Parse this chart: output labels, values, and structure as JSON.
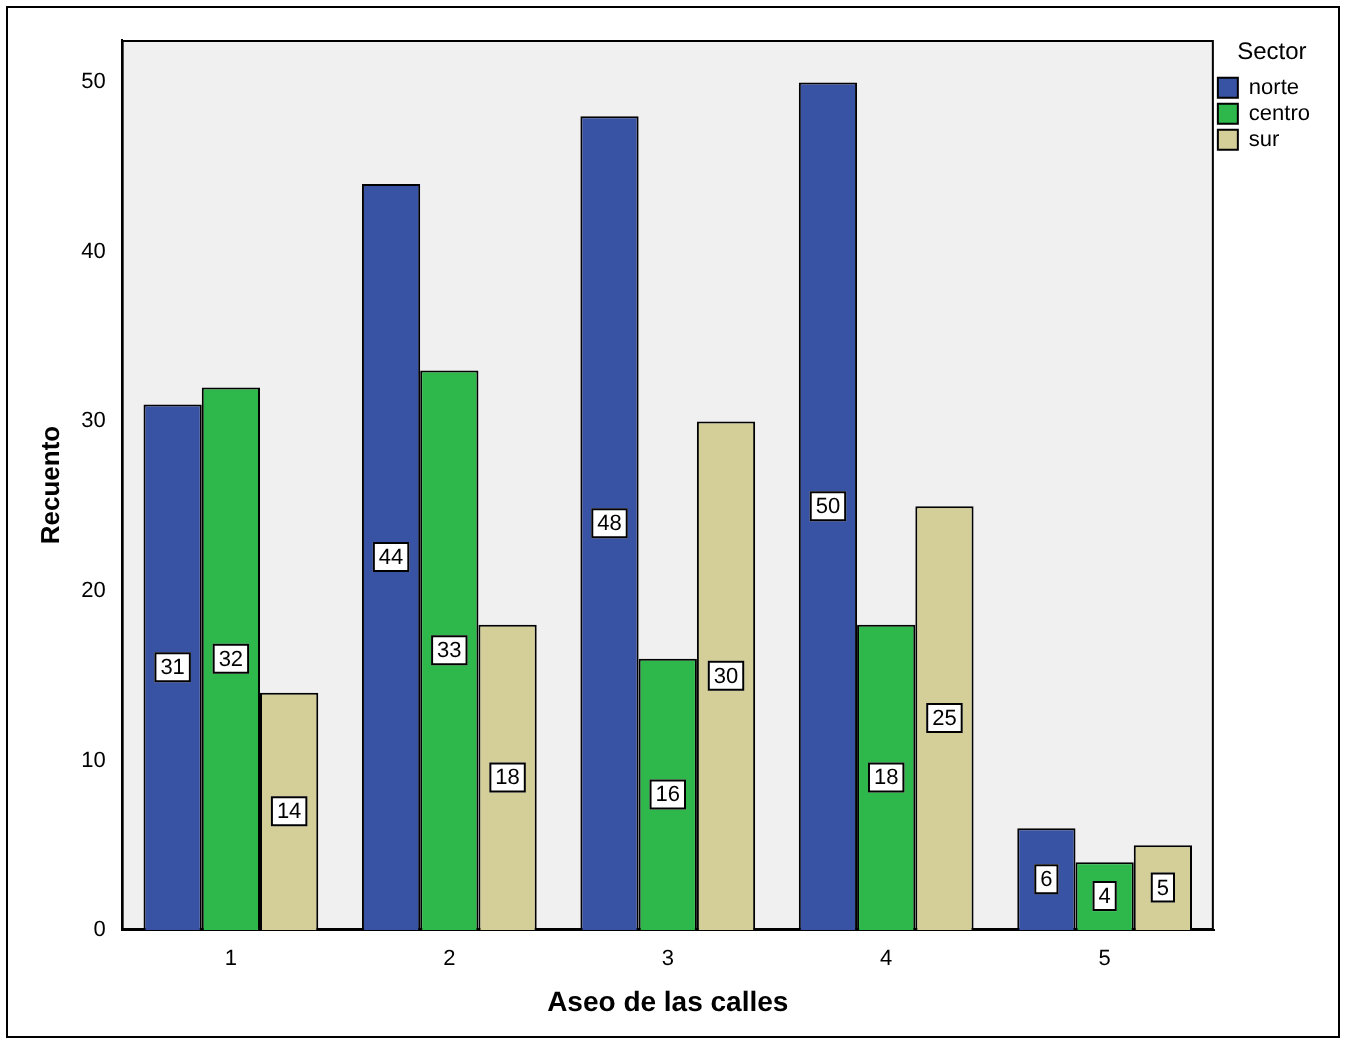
{
  "chart_data": {
    "type": "bar",
    "xlabel": "Aseo de las calles",
    "ylabel": "Recuento",
    "legend_title": "Sector",
    "categories": [
      "1",
      "2",
      "3",
      "4",
      "5"
    ],
    "series": [
      {
        "name": "norte",
        "color": "#3953a4",
        "values": [
          31,
          44,
          48,
          50,
          6
        ]
      },
      {
        "name": "centro",
        "color": "#2eb84b",
        "values": [
          32,
          33,
          16,
          18,
          4
        ]
      },
      {
        "name": "sur",
        "color": "#d4cf98",
        "values": [
          14,
          18,
          30,
          25,
          5
        ]
      }
    ],
    "ylim": [
      0,
      52.5
    ],
    "yticks": [
      0,
      10,
      20,
      30,
      40,
      50
    ],
    "grid": false,
    "legend": "top right",
    "data_labels": true
  }
}
